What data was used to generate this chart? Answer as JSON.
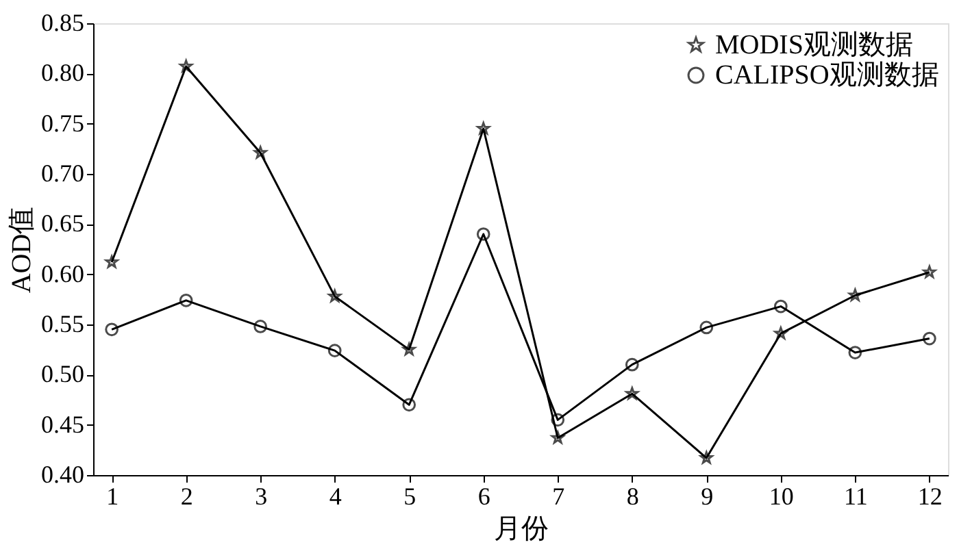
{
  "chart_data": {
    "type": "line",
    "xlabel": "月份",
    "ylabel": "AOD值",
    "x": [
      1,
      2,
      3,
      4,
      5,
      6,
      7,
      8,
      9,
      10,
      11,
      12
    ],
    "series": [
      {
        "name": "MODIS观测数据",
        "color": "#000000",
        "marker": "star",
        "values": [
          0.612,
          0.807,
          0.721,
          0.578,
          0.525,
          0.745,
          0.437,
          0.481,
          0.417,
          0.541,
          0.579,
          0.602
        ]
      },
      {
        "name": "CALIPSO观测数据",
        "color": "#000000",
        "marker": "circle",
        "values": [
          0.545,
          0.574,
          0.548,
          0.524,
          0.47,
          0.64,
          0.455,
          0.51,
          0.547,
          0.568,
          0.522,
          0.536
        ]
      }
    ],
    "xlim": [
      0.75,
      12.25
    ],
    "xticks": [
      1,
      2,
      3,
      4,
      5,
      6,
      7,
      8,
      9,
      10,
      11,
      12
    ],
    "ylim": [
      0.4,
      0.85
    ],
    "yticks": [
      {
        "value": 0.4,
        "label": "0.40"
      },
      {
        "value": 0.45,
        "label": "0.45"
      },
      {
        "value": 0.5,
        "label": "0.50"
      },
      {
        "value": 0.55,
        "label": "0.55"
      },
      {
        "value": 0.6,
        "label": "0.60"
      },
      {
        "value": 0.65,
        "label": "0.65"
      },
      {
        "value": 0.7,
        "label": "0.70"
      },
      {
        "value": 0.75,
        "label": "0.75"
      },
      {
        "value": 0.8,
        "label": "0.80"
      },
      {
        "value": 0.85,
        "label": "0.85"
      }
    ],
    "grid": false,
    "legend": "top right",
    "line_style": "solid"
  }
}
